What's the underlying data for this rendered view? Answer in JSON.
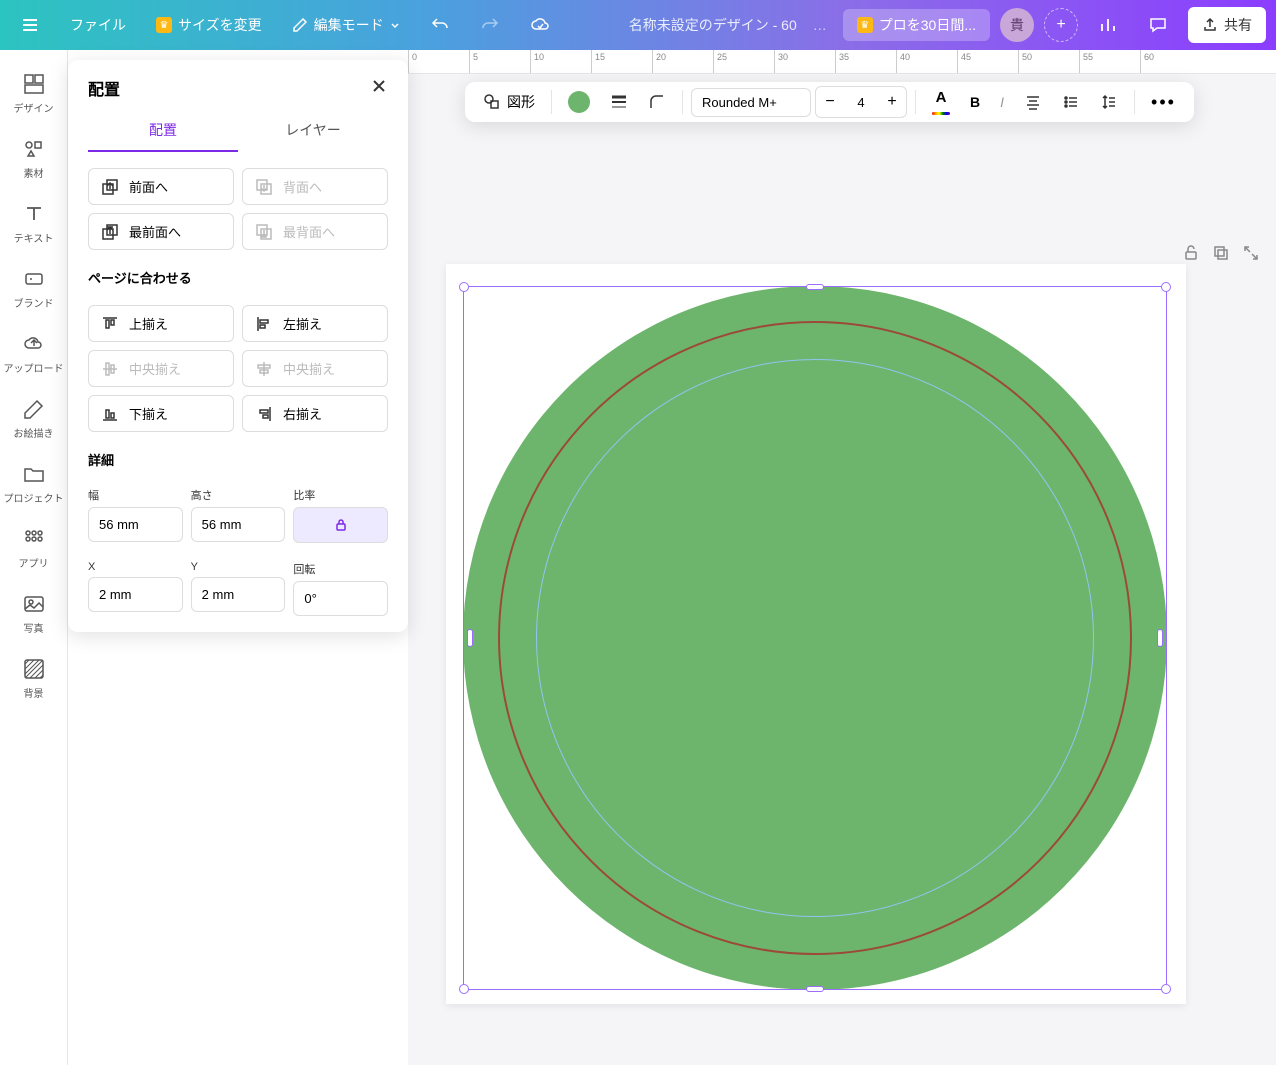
{
  "topbar": {
    "file": "ファイル",
    "resize": "サイズを変更",
    "edit_mode": "編集モード",
    "doc_name": "名称未設定のデザイン - 60",
    "pro_trial": "プロを30日間...",
    "avatar_initial": "貴",
    "share": "共有"
  },
  "rail": {
    "design": "デザイン",
    "elements": "素材",
    "text": "テキスト",
    "brand": "ブランド",
    "upload": "アップロード",
    "draw": "お絵描き",
    "projects": "プロジェクト",
    "apps": "アプリ",
    "photos": "写真",
    "background": "背景"
  },
  "panel": {
    "title": "配置",
    "tab_arrange": "配置",
    "tab_layers": "レイヤー",
    "forward": "前面へ",
    "backward": "背面へ",
    "to_front": "最前面へ",
    "to_back": "最背面へ",
    "align_to_page": "ページに合わせる",
    "align_top": "上揃え",
    "align_left": "左揃え",
    "align_vcenter": "中央揃え",
    "align_hcenter": "中央揃え",
    "align_bottom": "下揃え",
    "align_right": "右揃え",
    "details": "詳細",
    "width_label": "幅",
    "height_label": "高さ",
    "ratio_label": "比率",
    "width_val": "56 mm",
    "height_val": "56 mm",
    "x_label": "X",
    "y_label": "Y",
    "rotation_label": "回転",
    "x_val": "2 mm",
    "y_val": "2 mm",
    "rotation_val": "0°"
  },
  "ctx": {
    "shape": "図形",
    "font": "Rounded M+",
    "size": "4"
  },
  "ruler_ticks": [
    "0",
    "5",
    "10",
    "15",
    "20",
    "25",
    "30",
    "35",
    "40",
    "45",
    "50",
    "55",
    "60"
  ],
  "colors": {
    "shape_fill": "#6db56d",
    "ring1": "#9b4a3a",
    "ring2": "#8fc5f0",
    "accent": "#7d2ae8"
  }
}
